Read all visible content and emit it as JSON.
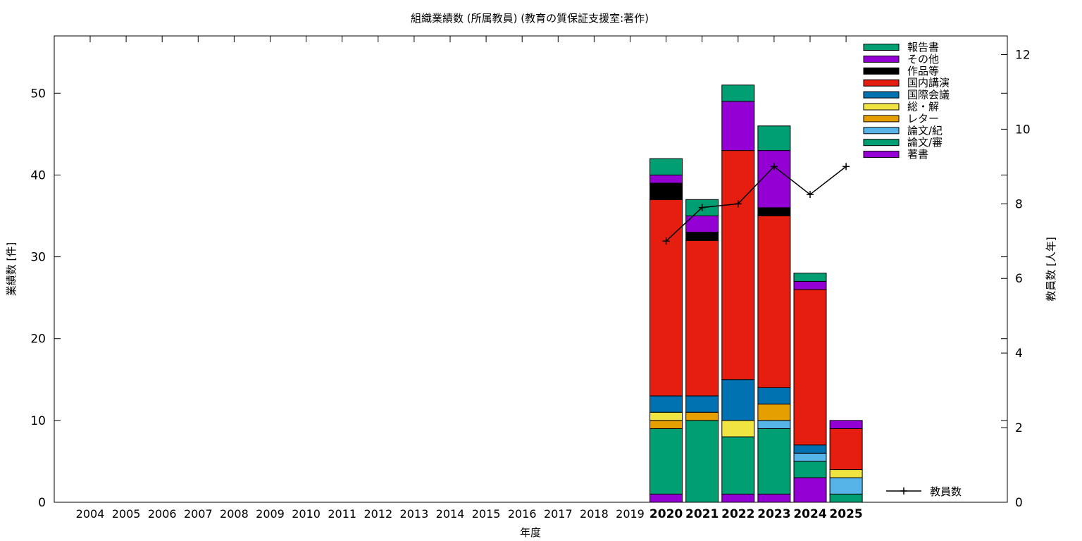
{
  "chart_data": {
    "type": "bar",
    "stacked": true,
    "title": "組織業績数 (所属教員) (教育の質保証支援室:著作)",
    "xlabel": "年度",
    "ylabel": "業績数 [件]",
    "y2label": "教員数 [人年]",
    "categories": [
      "2004",
      "2005",
      "2006",
      "2007",
      "2008",
      "2009",
      "2010",
      "2011",
      "2012",
      "2013",
      "2014",
      "2015",
      "2016",
      "2017",
      "2018",
      "2019",
      "2020",
      "2021",
      "2022",
      "2023",
      "2024",
      "2025"
    ],
    "bold_categories": [
      "2020",
      "2021",
      "2022",
      "2023",
      "2024",
      "2025"
    ],
    "ylim": [
      0,
      57
    ],
    "yticks": [
      0,
      10,
      20,
      30,
      40,
      50
    ],
    "y2lim": [
      0,
      12.5
    ],
    "y2ticks": [
      0,
      2,
      4,
      6,
      8,
      10,
      12
    ],
    "grid": false,
    "legend_position": "top-right",
    "series": [
      {
        "name": "著書",
        "color": "#9400d3",
        "values": [
          0,
          0,
          0,
          0,
          0,
          0,
          0,
          0,
          0,
          0,
          0,
          0,
          0,
          0,
          0,
          0,
          1,
          0,
          1,
          1,
          3,
          0
        ]
      },
      {
        "name": "論文/審",
        "color": "#009e73",
        "values": [
          0,
          0,
          0,
          0,
          0,
          0,
          0,
          0,
          0,
          0,
          0,
          0,
          0,
          0,
          0,
          0,
          8,
          10,
          7,
          8,
          2,
          1
        ]
      },
      {
        "name": "論文/紀",
        "color": "#56b4e9",
        "values": [
          0,
          0,
          0,
          0,
          0,
          0,
          0,
          0,
          0,
          0,
          0,
          0,
          0,
          0,
          0,
          0,
          0,
          0,
          0,
          1,
          1,
          2
        ]
      },
      {
        "name": "レター",
        "color": "#e69f00",
        "values": [
          0,
          0,
          0,
          0,
          0,
          0,
          0,
          0,
          0,
          0,
          0,
          0,
          0,
          0,
          0,
          0,
          1,
          1,
          0,
          2,
          0,
          0
        ]
      },
      {
        "name": "総・解",
        "color": "#f0e442",
        "values": [
          0,
          0,
          0,
          0,
          0,
          0,
          0,
          0,
          0,
          0,
          0,
          0,
          0,
          0,
          0,
          0,
          1,
          0,
          2,
          0,
          0,
          1
        ]
      },
      {
        "name": "国際会議",
        "color": "#0072b2",
        "values": [
          0,
          0,
          0,
          0,
          0,
          0,
          0,
          0,
          0,
          0,
          0,
          0,
          0,
          0,
          0,
          0,
          2,
          2,
          5,
          2,
          1,
          0
        ]
      },
      {
        "name": "国内講演",
        "color": "#e51e10",
        "values": [
          0,
          0,
          0,
          0,
          0,
          0,
          0,
          0,
          0,
          0,
          0,
          0,
          0,
          0,
          0,
          0,
          24,
          19,
          28,
          21,
          19,
          5
        ]
      },
      {
        "name": "作品等",
        "color": "#000000",
        "values": [
          0,
          0,
          0,
          0,
          0,
          0,
          0,
          0,
          0,
          0,
          0,
          0,
          0,
          0,
          0,
          0,
          2,
          1,
          0,
          1,
          0,
          0
        ]
      },
      {
        "name": "その他",
        "color": "#9400d3",
        "values": [
          0,
          0,
          0,
          0,
          0,
          0,
          0,
          0,
          0,
          0,
          0,
          0,
          0,
          0,
          0,
          0,
          1,
          2,
          6,
          7,
          1,
          1
        ]
      },
      {
        "name": "報告書",
        "color": "#009e73",
        "values": [
          0,
          0,
          0,
          0,
          0,
          0,
          0,
          0,
          0,
          0,
          0,
          0,
          0,
          0,
          0,
          0,
          2,
          2,
          2,
          3,
          1,
          0
        ]
      }
    ],
    "line": {
      "name": "教員数",
      "color": "#000000",
      "x": [
        "2020",
        "2021",
        "2022",
        "2023",
        "2024",
        "2025"
      ],
      "values": [
        7,
        7.9,
        8,
        9,
        8.25,
        9
      ]
    }
  }
}
